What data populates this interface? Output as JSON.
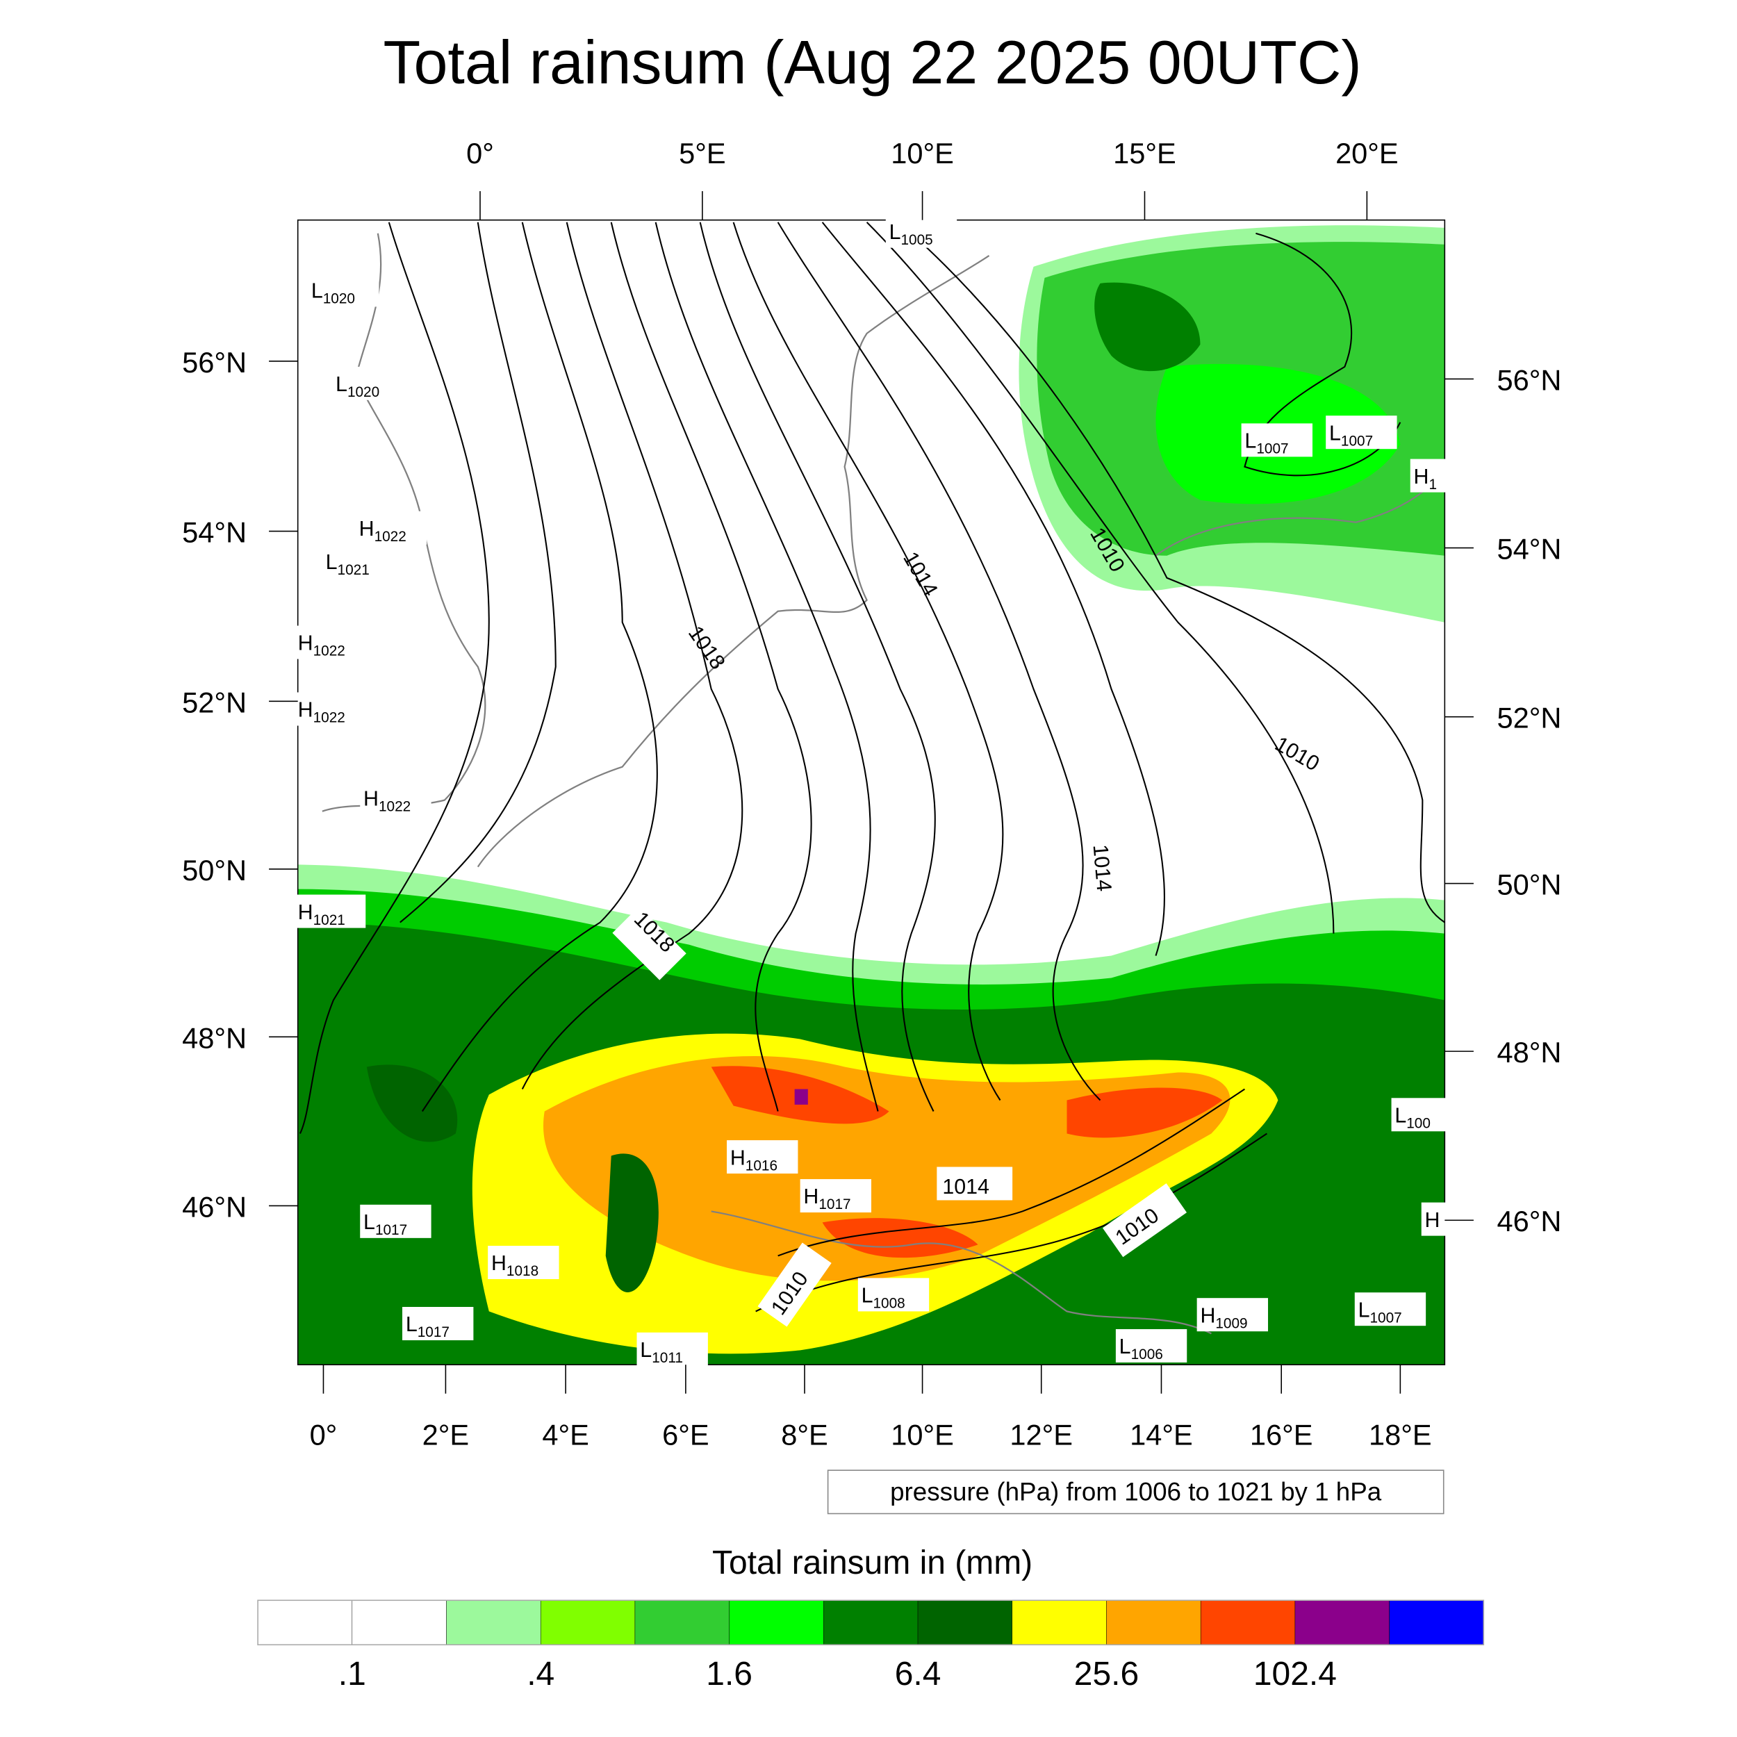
{
  "title": "Total rainsum (Aug 22 2025 00UTC)",
  "top_lon_labels": [
    "0°",
    "5°E",
    "10°E",
    "15°E",
    "20°E"
  ],
  "bottom_lon_labels": [
    "0°",
    "2°E",
    "4°E",
    "6°E",
    "8°E",
    "10°E",
    "12°E",
    "14°E",
    "16°E",
    "18°E"
  ],
  "left_lat_labels": [
    "56°N",
    "54°N",
    "52°N",
    "50°N",
    "48°N",
    "46°N"
  ],
  "right_lat_labels": [
    "56°N",
    "54°N",
    "52°N",
    "50°N",
    "48°N",
    "46°N"
  ],
  "contour_info": "pressure (hPa) from 1006 to 1021 by 1 hPa",
  "pressure_centers": [
    {
      "type": "L",
      "value": "1005"
    },
    {
      "type": "L",
      "value": "1020"
    },
    {
      "type": "L",
      "value": "1020"
    },
    {
      "type": "H",
      "value": "1022"
    },
    {
      "type": "L",
      "value": "1021"
    },
    {
      "type": "H",
      "value": "1022"
    },
    {
      "type": "H",
      "value": "1022"
    },
    {
      "type": "H",
      "value": "1022"
    },
    {
      "type": "H",
      "value": "1021"
    },
    {
      "type": "L",
      "value": "1007"
    },
    {
      "type": "L",
      "value": "1007"
    },
    {
      "type": "H",
      "value": "1"
    },
    {
      "type": "L",
      "value": "100"
    },
    {
      "type": "H",
      "value": ""
    },
    {
      "type": "H",
      "value": "1016"
    },
    {
      "type": "H",
      "value": "1017"
    },
    {
      "type": "L",
      "value": "1017"
    },
    {
      "type": "H",
      "value": "1018"
    },
    {
      "type": "L",
      "value": "1017"
    },
    {
      "type": "L",
      "value": "1011"
    },
    {
      "type": "L",
      "value": "1008"
    },
    {
      "type": "H",
      "value": "1009"
    },
    {
      "type": "L",
      "value": "1007"
    },
    {
      "type": "L",
      "value": "1006"
    }
  ],
  "contour_labels": [
    "1014",
    "1010",
    "1018",
    "1018",
    "1010",
    "1014",
    "1014",
    "1010",
    "1010"
  ],
  "legend": {
    "title": "Total rainsum in (mm)",
    "colors": [
      "#ffffff",
      "#ffffff",
      "#9cf99c",
      "#80ff00",
      "#32cd32",
      "#00ff00",
      "#008000",
      "#006400",
      "#ffff00",
      "#ffa500",
      "#ff4500",
      "#8b008b",
      "#0000ff"
    ],
    "labels": [
      ".1",
      ".4",
      "1.6",
      "6.4",
      "25.6",
      "102.4"
    ]
  }
}
